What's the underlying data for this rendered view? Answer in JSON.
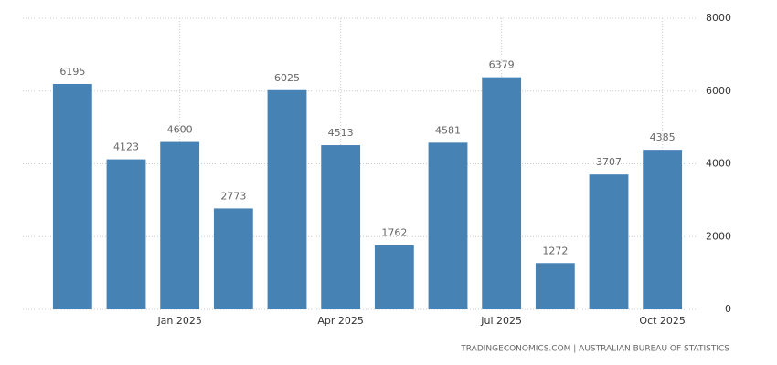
{
  "chart_data": {
    "type": "bar",
    "categories": [
      null,
      null,
      "Jan 2025",
      null,
      null,
      "Apr 2025",
      null,
      null,
      "Jul 2025",
      null,
      null,
      "Oct 2025"
    ],
    "values": [
      6195,
      4123,
      4600,
      2773,
      6025,
      4513,
      1762,
      4581,
      6379,
      1272,
      3707,
      4385
    ],
    "color": "#4682b4",
    "ylim": [
      0,
      8000
    ],
    "yticks": [
      0,
      2000,
      4000,
      6000,
      8000
    ],
    "grid": true,
    "source": "TRADINGECONOMICS.COM | AUSTRALIAN BUREAU OF STATISTICS"
  }
}
